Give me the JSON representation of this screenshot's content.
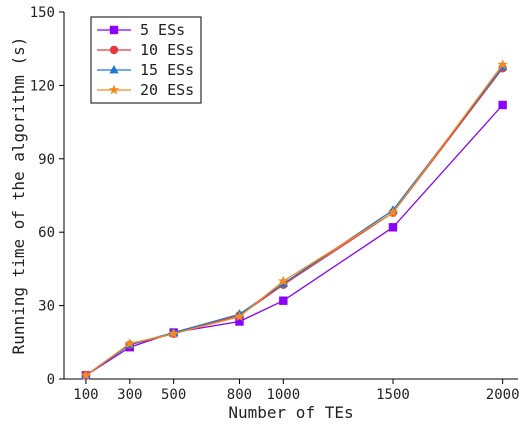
{
  "chart_data": {
    "type": "line",
    "xlabel": "Number of TEs",
    "ylabel": "Running time of the algorithm (s)",
    "x": [
      100,
      300,
      500,
      800,
      1000,
      1500,
      2000
    ],
    "xticks": [
      100,
      300,
      500,
      800,
      1000,
      1500,
      2000
    ],
    "xlim": [
      0,
      2070
    ],
    "ylim": [
      0,
      150
    ],
    "yticks": [
      0,
      30,
      60,
      90,
      120,
      150
    ],
    "grid": false,
    "legend": "top-left",
    "series": [
      {
        "name": "5 ESs",
        "color": "#8B00FF",
        "marker": "square",
        "values": [
          1.5,
          13.0,
          19.0,
          23.5,
          32.0,
          62.0,
          112.0
        ]
      },
      {
        "name": "10 ESs",
        "color": "#E8383D",
        "marker": "circle",
        "values": [
          1.5,
          14.0,
          18.5,
          26.0,
          38.5,
          68.0,
          127.0
        ]
      },
      {
        "name": "15 ESs",
        "color": "#1F77D0",
        "marker": "triangle",
        "values": [
          1.5,
          14.0,
          19.0,
          26.5,
          39.0,
          69.0,
          127.5
        ]
      },
      {
        "name": "20 ESs",
        "color": "#F28C1E",
        "marker": "star",
        "values": [
          1.5,
          14.5,
          18.5,
          25.5,
          40.0,
          68.0,
          128.5
        ]
      }
    ]
  }
}
